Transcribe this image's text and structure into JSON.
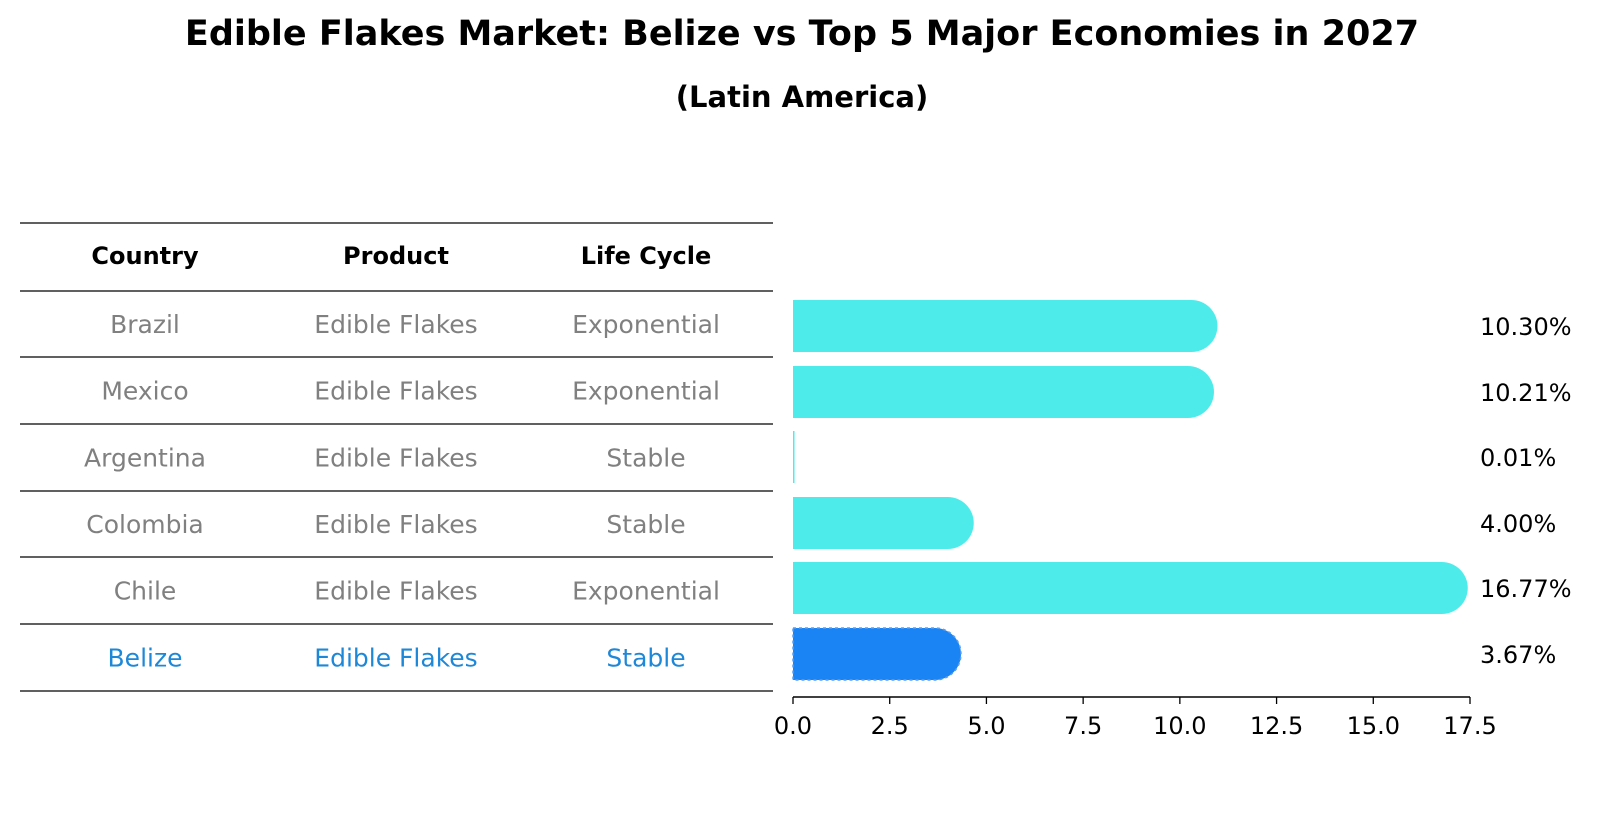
{
  "title": "Edible Flakes Market: Belize vs Top 5 Major Economies in 2027",
  "subtitle": "(Latin America)",
  "colors": {
    "bar": "#4deceb",
    "highlight_bar": "#1a84f5",
    "highlight_text": "#1e88d8",
    "muted_text": "#808080"
  },
  "table": {
    "headers": [
      "Country",
      "Product",
      "Life Cycle"
    ],
    "rows": [
      [
        "Brazil",
        "Edible Flakes",
        "Exponential"
      ],
      [
        "Mexico",
        "Edible Flakes",
        "Exponential"
      ],
      [
        "Argentina",
        "Edible Flakes",
        "Stable"
      ],
      [
        "Colombia",
        "Edible Flakes",
        "Stable"
      ],
      [
        "Chile",
        "Edible Flakes",
        "Exponential"
      ],
      [
        "Belize",
        "Edible Flakes",
        "Stable"
      ]
    ],
    "highlight_row": 5
  },
  "chart_data": {
    "type": "bar",
    "orientation": "horizontal",
    "categories": [
      "Brazil",
      "Mexico",
      "Argentina",
      "Colombia",
      "Chile",
      "Belize"
    ],
    "values": [
      10.3,
      10.21,
      0.01,
      4.0,
      16.77,
      3.67
    ],
    "value_labels": [
      "10.30%",
      "10.21%",
      "0.01%",
      "4.00%",
      "16.77%",
      "3.67%"
    ],
    "highlight": "Belize",
    "xlim": [
      0,
      17.5
    ],
    "xticks": [
      "0.0",
      "2.5",
      "5.0",
      "7.5",
      "10.0",
      "12.5",
      "15.0",
      "17.5"
    ],
    "grid": false
  }
}
